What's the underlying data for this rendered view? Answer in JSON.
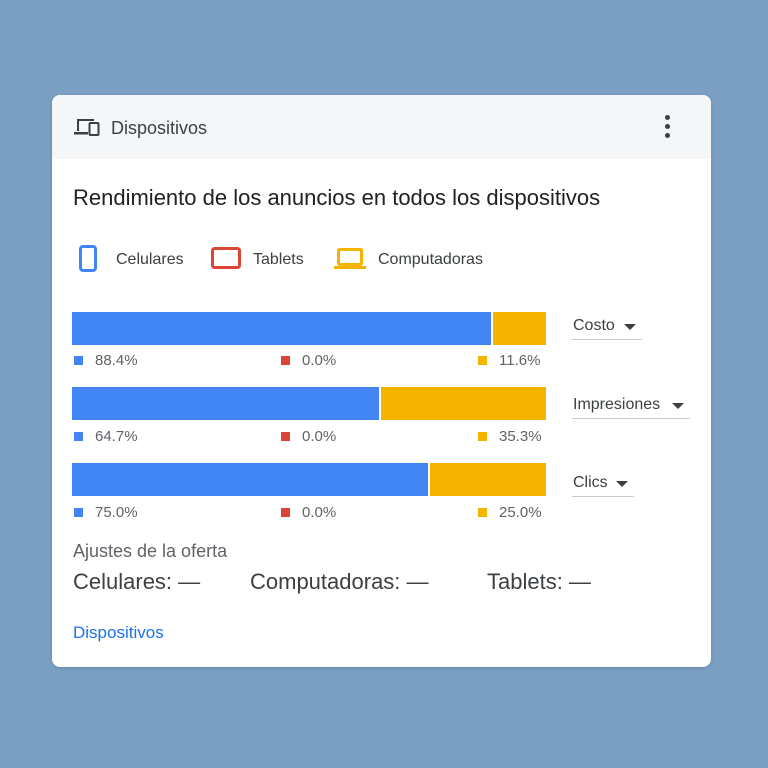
{
  "card": {
    "title": "Dispositivos",
    "headline": "Rendimiento de los anuncios en todos los dispositivos",
    "footer_link": "Dispositivos"
  },
  "legend": [
    {
      "label": "Celulares",
      "color": "#4285f4",
      "icon": "smartphone-icon"
    },
    {
      "label": "Tablets",
      "color": "#db4437",
      "icon": "tablet-icon"
    },
    {
      "label": "Computadoras",
      "color": "#f4b400",
      "icon": "laptop-icon"
    }
  ],
  "metrics": [
    {
      "select_label": "Costo",
      "celulares": 88.4,
      "tablets": 0.0,
      "computadoras": 11.6,
      "celulares_text": "88.4%",
      "tablets_text": "0.0%",
      "computadoras_text": "11.6%"
    },
    {
      "select_label": "Impresiones",
      "celulares": 64.7,
      "tablets": 0.0,
      "computadoras": 35.3,
      "celulares_text": "64.7%",
      "tablets_text": "0.0%",
      "computadoras_text": "35.3%"
    },
    {
      "select_label": "Clics",
      "celulares": 75.0,
      "tablets": 0.0,
      "computadoras": 25.0,
      "celulares_text": "75.0%",
      "tablets_text": "0.0%",
      "computadoras_text": "25.0%"
    }
  ],
  "bid_adjustments": {
    "title": "Ajustes de la oferta",
    "items": [
      "Celulares: —",
      "Computadoras: —",
      "Tablets: —"
    ]
  },
  "colors": {
    "celulares": "#4285f4",
    "tablets": "#db4437",
    "computadoras": "#f4b400",
    "link": "#1a73e8",
    "background": "#7a9fc3"
  }
}
